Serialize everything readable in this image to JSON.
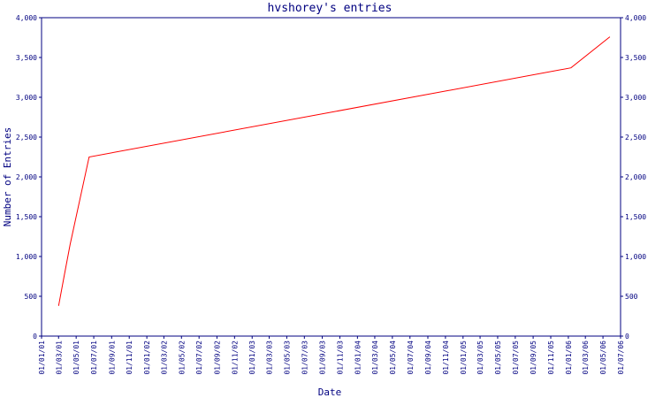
{
  "chart_data": {
    "type": "line",
    "title": "hvshorey's entries",
    "xlabel": "Date",
    "ylabel": "Number of Entries",
    "ylim": [
      0,
      4000
    ],
    "y_ticks": [
      0,
      500,
      1000,
      1500,
      2000,
      2500,
      3000,
      3500,
      4000
    ],
    "y_tick_labels": [
      "0",
      "500",
      "1,000",
      "1,500",
      "2,000",
      "2,500",
      "3,000",
      "3,500",
      "4,000"
    ],
    "x_tick_labels": [
      "01/01/01",
      "01/03/01",
      "01/05/01",
      "01/07/01",
      "01/09/01",
      "01/11/01",
      "01/01/02",
      "01/03/02",
      "01/05/02",
      "01/07/02",
      "01/09/02",
      "01/11/02",
      "01/01/03",
      "01/03/03",
      "01/05/03",
      "01/07/03",
      "01/09/03",
      "01/11/03",
      "01/01/04",
      "01/03/04",
      "01/05/04",
      "01/07/04",
      "01/09/04",
      "01/11/04",
      "01/01/05",
      "01/03/05",
      "01/05/05",
      "01/07/05",
      "01/09/05",
      "01/11/05",
      "01/01/06",
      "01/03/06",
      "01/05/06",
      "01/07/06"
    ],
    "x_tick_dates": [
      "2001-01-01",
      "2001-03-01",
      "2001-05-01",
      "2001-07-01",
      "2001-09-01",
      "2001-11-01",
      "2002-01-01",
      "2002-03-01",
      "2002-05-01",
      "2002-07-01",
      "2002-09-01",
      "2002-11-01",
      "2003-01-01",
      "2003-03-01",
      "2003-05-01",
      "2003-07-01",
      "2003-09-01",
      "2003-11-01",
      "2004-01-01",
      "2004-03-01",
      "2004-05-01",
      "2004-07-01",
      "2004-09-01",
      "2004-11-01",
      "2005-01-01",
      "2005-03-01",
      "2005-05-01",
      "2005-07-01",
      "2005-09-01",
      "2005-11-01",
      "2006-01-01",
      "2006-03-01",
      "2006-05-01",
      "2006-07-01"
    ],
    "series": [
      {
        "color": "#ff0000",
        "points": [
          {
            "x": "2001-03-01",
            "y": 380
          },
          {
            "x": "2001-03-20",
            "y": 750
          },
          {
            "x": "2001-04-10",
            "y": 1150
          },
          {
            "x": "2001-06-15",
            "y": 2250
          },
          {
            "x": "2006-01-10",
            "y": 3370
          },
          {
            "x": "2006-05-25",
            "y": 3760
          }
        ]
      }
    ],
    "colors": {
      "axis": "#000080",
      "line": "#ff0000",
      "background": "#ffffff"
    }
  }
}
